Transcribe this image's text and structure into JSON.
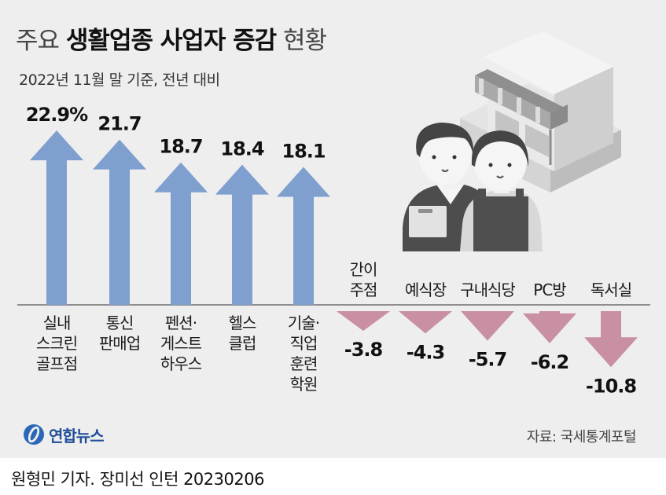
{
  "header": {
    "title_prefix": "주요",
    "title_main": "생활업종 사업자 증감",
    "title_suffix": "현황",
    "subtitle": "2022년 11월 말 기준, 전년 대비"
  },
  "footer": {
    "logo_text": "연합뉴스",
    "source": "자료: 국세통계포털",
    "credit": "원형민 기자. 장미선 인턴  20230206"
  },
  "colors": {
    "positive": "#7f9fcf",
    "negative": "#c98fa3",
    "background": "#eeeeee"
  },
  "chart_data": {
    "type": "bar",
    "unit": "%",
    "categories": [
      [
        "실내",
        "스크린",
        "골프점"
      ],
      [
        "통신",
        "판매업"
      ],
      [
        "펜션·",
        "게스트",
        "하우스"
      ],
      [
        "헬스",
        "클럽"
      ],
      [
        "기술·",
        "직업",
        "훈련",
        "학원"
      ],
      [
        "간이",
        "주점"
      ],
      [
        "예식장"
      ],
      [
        "구내식당"
      ],
      [
        "PC방"
      ],
      [
        "독서실"
      ]
    ],
    "values": [
      22.9,
      21.7,
      18.7,
      18.4,
      18.1,
      -3.8,
      -4.3,
      -5.7,
      -6.2,
      -10.8
    ],
    "value_labels": [
      "22.9%",
      "21.7",
      "18.7",
      "18.4",
      "18.1",
      "-3.8",
      "-4.3",
      "-5.7",
      "-6.2",
      "-10.8"
    ]
  }
}
